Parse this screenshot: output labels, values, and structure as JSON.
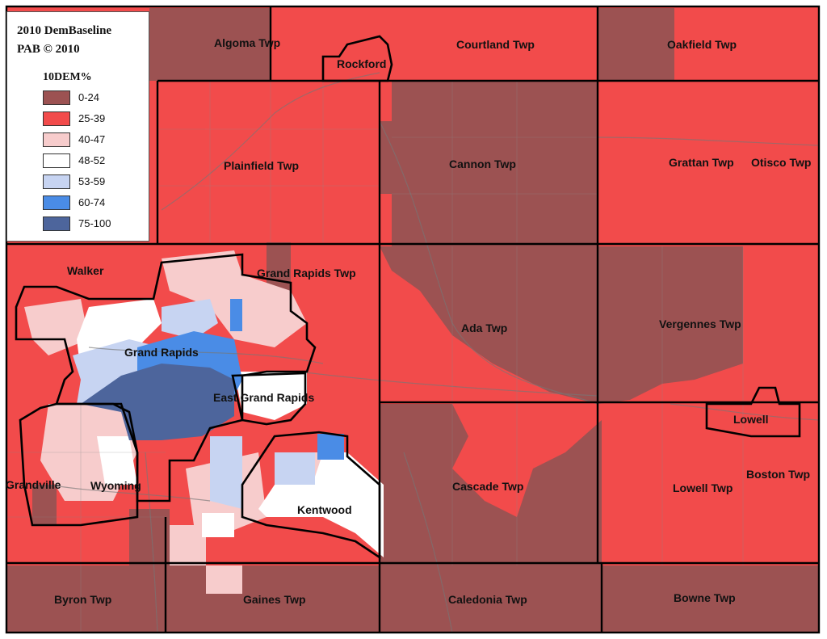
{
  "legend": {
    "title": "2010 DemBaseline",
    "copyright": "PAB © 2010",
    "field": "10DEM%",
    "classes": [
      {
        "range": "0-24",
        "color": "#9c5252"
      },
      {
        "range": "25-39",
        "color": "#f24b4b"
      },
      {
        "range": "40-47",
        "color": "#f7cccc"
      },
      {
        "range": "48-52",
        "color": "#ffffff"
      },
      {
        "range": "53-59",
        "color": "#c7d4f2"
      },
      {
        "range": "60-74",
        "color": "#4a8ce6"
      },
      {
        "range": "75-100",
        "color": "#4d659c"
      }
    ]
  },
  "places": {
    "algoma": "Algoma Twp",
    "rockford": "Rockford",
    "courtland": "Courtland Twp",
    "oakfield": "Oakfield Twp",
    "plainfield": "Plainfield Twp",
    "cannon": "Cannon Twp",
    "grattan": "Grattan Twp",
    "otisco": "Otisco Twp",
    "walker": "Walker",
    "grand_rapids_twp": "Grand Rapids Twp",
    "grand_rapids": "Grand Rapids",
    "ada": "Ada Twp",
    "vergennes": "Vergennes Twp",
    "east_grand_rapids": "East Grand Rapids",
    "lowell": "Lowell",
    "grandville": "Grandville",
    "wyoming": "Wyoming",
    "cascade": "Cascade Twp",
    "boston": "Boston Twp",
    "lowell_twp": "Lowell Twp",
    "kentwood": "Kentwood",
    "byron": "Byron Twp",
    "gaines": "Gaines Twp",
    "caledonia": "Caledonia Twp",
    "bowne": "Bowne Twp"
  }
}
